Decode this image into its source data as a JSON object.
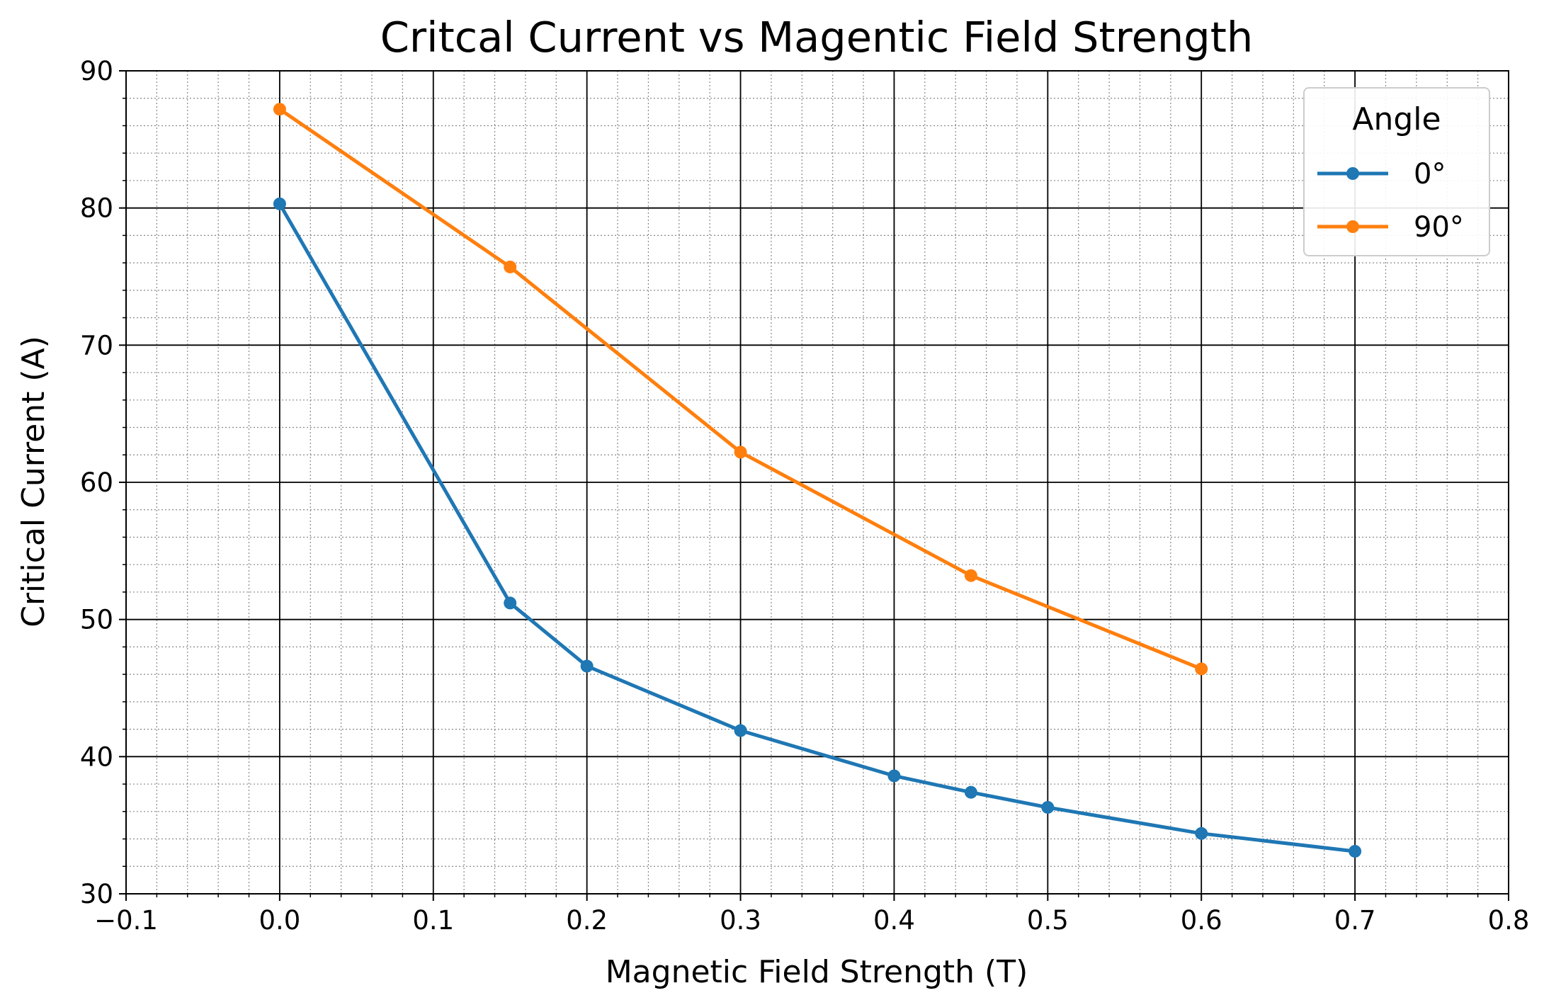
{
  "chart_data": {
    "type": "line",
    "title": "Critcal Current vs Magentic Field Strength",
    "xlabel": "Magnetic Field Strength (T)",
    "ylabel": "Critical Current (A)",
    "xlim": [
      -0.1,
      0.8
    ],
    "ylim": [
      30,
      90
    ],
    "x_ticks": [
      -0.1,
      0.0,
      0.1,
      0.2,
      0.3,
      0.4,
      0.5,
      0.6,
      0.7,
      0.8
    ],
    "x_tick_labels": [
      "−0.1",
      "0.0",
      "0.1",
      "0.2",
      "0.3",
      "0.4",
      "0.5",
      "0.6",
      "0.7",
      "0.8"
    ],
    "y_ticks": [
      30,
      40,
      50,
      60,
      70,
      80,
      90
    ],
    "y_tick_labels": [
      "30",
      "40",
      "50",
      "60",
      "70",
      "80",
      "90"
    ],
    "x_minor_step": 0.02,
    "y_minor_step": 2,
    "grid": true,
    "legend": {
      "title": "Angle",
      "location": "top-right"
    },
    "series": [
      {
        "name": "0°",
        "color": "#1f77b4",
        "marker": "circle",
        "x": [
          0.0,
          0.15,
          0.2,
          0.3,
          0.4,
          0.45,
          0.5,
          0.6,
          0.7
        ],
        "y": [
          80.3,
          51.2,
          46.6,
          41.9,
          38.6,
          37.4,
          36.3,
          34.4,
          33.1
        ]
      },
      {
        "name": "90°",
        "color": "#ff7f0e",
        "marker": "circle",
        "x": [
          0.0,
          0.15,
          0.3,
          0.45,
          0.6
        ],
        "y": [
          87.2,
          75.7,
          62.2,
          53.2,
          46.4
        ]
      }
    ]
  }
}
